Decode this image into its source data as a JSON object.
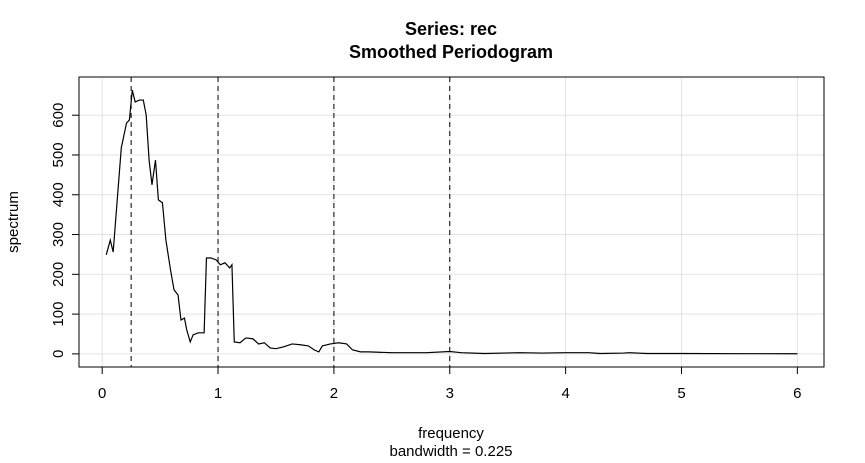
{
  "chart_data": {
    "type": "line",
    "title": "Series: rec",
    "subtitle": "Smoothed Periodogram",
    "x_label": "frequency",
    "x_sublabel": "bandwidth = 0.225",
    "y_label": "spectrum",
    "x": [
      0.035,
      0.07,
      0.095,
      0.13,
      0.165,
      0.21,
      0.235,
      0.26,
      0.285,
      0.32,
      0.355,
      0.38,
      0.405,
      0.43,
      0.46,
      0.485,
      0.52,
      0.55,
      0.59,
      0.62,
      0.655,
      0.68,
      0.71,
      0.73,
      0.76,
      0.785,
      0.83,
      0.88,
      0.9,
      0.94,
      0.985,
      1.02,
      1.06,
      1.1,
      1.12,
      1.14,
      1.19,
      1.24,
      1.3,
      1.35,
      1.4,
      1.45,
      1.5,
      1.57,
      1.64,
      1.71,
      1.78,
      1.83,
      1.87,
      1.9,
      1.97,
      2.04,
      2.11,
      2.16,
      2.23,
      2.3,
      2.5,
      2.8,
      3.0,
      3.1,
      3.3,
      3.6,
      3.8,
      4.0,
      4.2,
      4.3,
      4.5,
      4.55,
      4.7,
      5.0,
      5.5,
      6.0
    ],
    "values": [
      249,
      286,
      256,
      387,
      518,
      580,
      588,
      663,
      633,
      638,
      638,
      600,
      487,
      425,
      487,
      387,
      380,
      286,
      211,
      161,
      148,
      85,
      90,
      60,
      30,
      48,
      53,
      53,
      241,
      241,
      236,
      224,
      229,
      216,
      224,
      30,
      28,
      40,
      38,
      25,
      28,
      15,
      13,
      18,
      25,
      23,
      20,
      10,
      5,
      20,
      25,
      28,
      25,
      10,
      5,
      5,
      3,
      3,
      6,
      3,
      1,
      3,
      2,
      3,
      3,
      1,
      2,
      3,
      1,
      1,
      0.5,
      0.3
    ],
    "color": "#000000",
    "vlines": [
      0.25,
      1,
      2,
      3
    ],
    "xlim": [
      -0.2,
      6.23
    ],
    "ylim": [
      -33,
      696
    ],
    "xticks": [
      0,
      1,
      2,
      3,
      4,
      5,
      6
    ],
    "yticks": [
      0,
      100,
      200,
      300,
      400,
      500,
      600
    ],
    "grid": true
  }
}
